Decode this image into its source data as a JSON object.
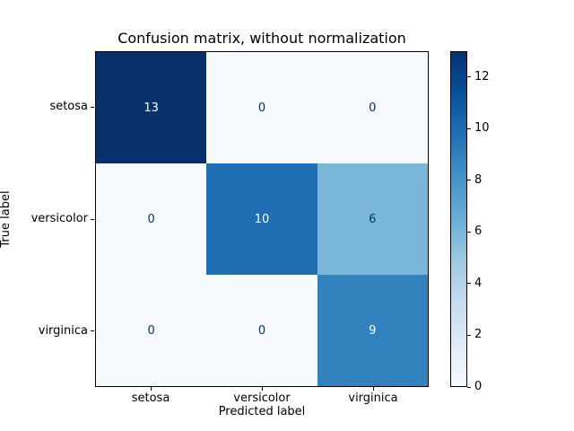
{
  "figure": {
    "background": "#ffffff"
  },
  "chart_data": {
    "type": "heatmap",
    "title": "Confusion matrix, without normalization",
    "xlabel": "Predicted label",
    "ylabel": "True label",
    "x_categories": [
      "setosa",
      "versicolor",
      "virginica"
    ],
    "y_categories": [
      "setosa",
      "versicolor",
      "virginica"
    ],
    "matrix": [
      [
        13,
        0,
        0
      ],
      [
        0,
        10,
        6
      ],
      [
        0,
        0,
        9
      ]
    ],
    "vmin": 0,
    "vmax": 13,
    "colormap": "Blues",
    "legend_position": "right-colorbar",
    "grid": false,
    "colorbar_ticks": [
      0,
      2,
      4,
      6,
      8,
      10,
      12
    ],
    "cell_colors": [
      [
        "#08306b",
        "#f7fbff",
        "#f7fbff"
      ],
      [
        "#f7fbff",
        "#1f6eb4",
        "#7bb7d9"
      ],
      [
        "#f7fbff",
        "#f7fbff",
        "#3282bd"
      ]
    ],
    "cell_text_colors": [
      [
        "#ffffff",
        "#08306b",
        "#08306b"
      ],
      [
        "#08306b",
        "#ffffff",
        "#08306b"
      ],
      [
        "#08306b",
        "#08306b",
        "#ffffff"
      ]
    ],
    "colormap_stops": [
      "#f7fbff",
      "#deebf7",
      "#c6dbef",
      "#9ecae1",
      "#6baed6",
      "#4292c6",
      "#2171b5",
      "#08519c",
      "#08306b"
    ],
    "axis_color": "#000000"
  }
}
